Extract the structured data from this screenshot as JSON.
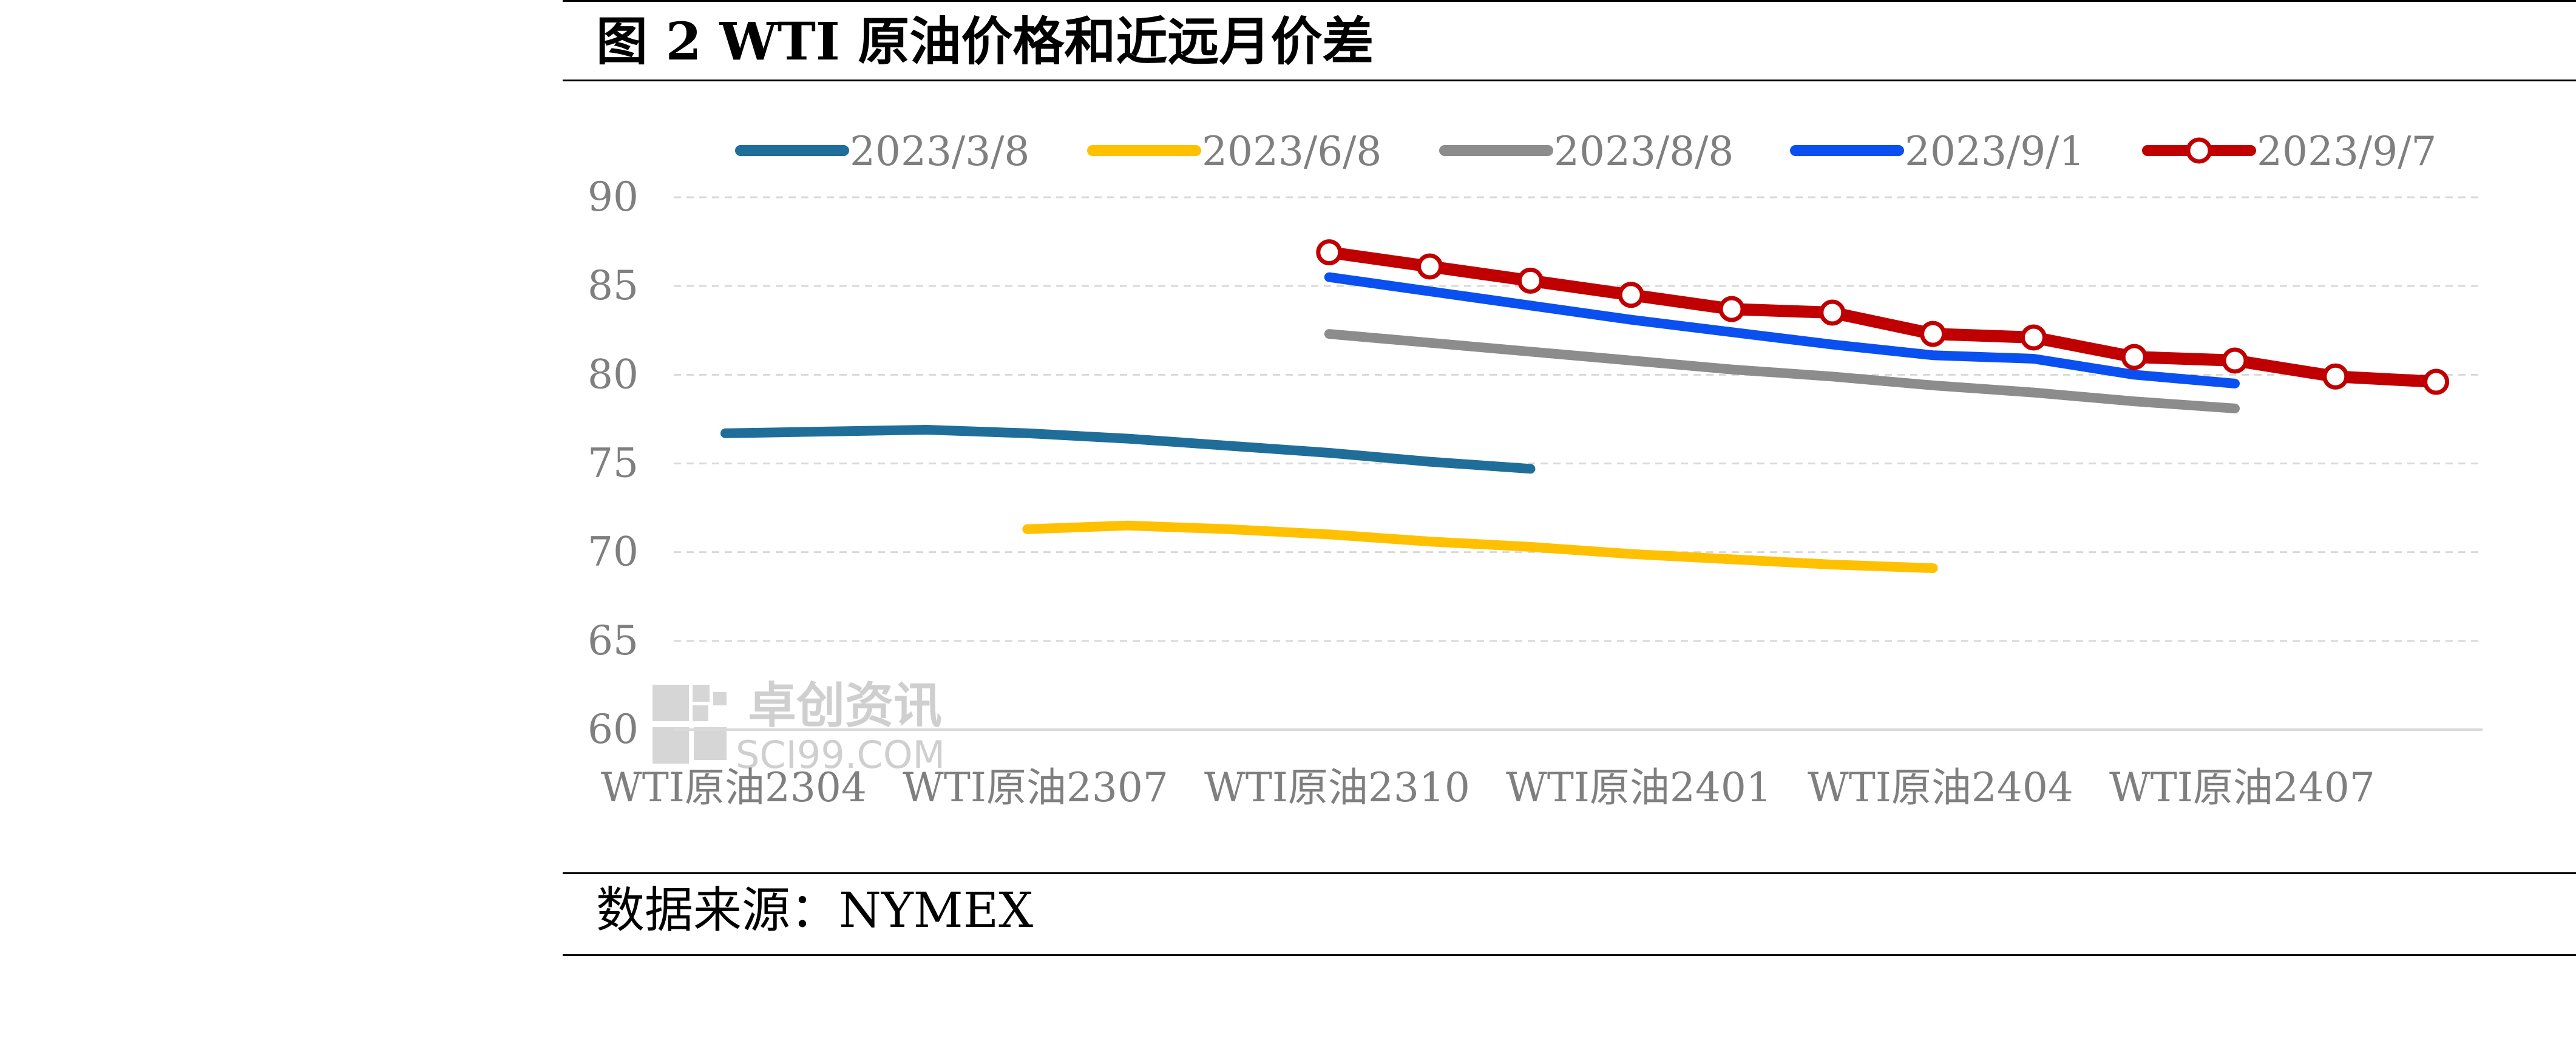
{
  "figure": {
    "title": "图 2 WTI 原油价格和近远月价差",
    "source": "数据来源：NYMEX"
  },
  "watermark": {
    "name": "卓创资讯",
    "site": "SCI99.COM"
  },
  "chart_data": {
    "type": "line",
    "title": "",
    "xlabel": "",
    "ylabel": "",
    "ylim": [
      60,
      90
    ],
    "yticks": [
      60,
      65,
      70,
      75,
      80,
      85,
      90
    ],
    "grid": true,
    "grid_style": "dashed horizontal",
    "legend_position": "top",
    "x_tick_labels": [
      "WTI原油2304",
      "WTI原油2307",
      "WTI原油2310",
      "WTI原油2401",
      "WTI原油2404",
      "WTI原油2407"
    ],
    "series": [
      {
        "name": "2023/3/8",
        "color": "#1f6e99",
        "markers": false,
        "x": [
          "WTI原油2304",
          "WTI原油2305",
          "WTI原油2306",
          "WTI原油2307",
          "WTI原油2308",
          "WTI原油2309",
          "WTI原油2310",
          "WTI原油2311",
          "WTI原油2312"
        ],
        "values": [
          76.7,
          76.8,
          76.9,
          76.7,
          76.4,
          76.0,
          75.6,
          75.1,
          74.7
        ]
      },
      {
        "name": "2023/6/8",
        "color": "#ffc000",
        "markers": false,
        "x": [
          "WTI原油2307",
          "WTI原油2308",
          "WTI原油2309",
          "WTI原油2310",
          "WTI原油2311",
          "WTI原油2312",
          "WTI原油2401",
          "WTI原油2402",
          "WTI原油2403",
          "WTI原油2404"
        ],
        "values": [
          71.3,
          71.5,
          71.3,
          71.0,
          70.6,
          70.3,
          69.9,
          69.6,
          69.3,
          69.1
        ]
      },
      {
        "name": "2023/8/8",
        "color": "#8c8c8c",
        "markers": false,
        "x": [
          "WTI原油2310",
          "WTI原油2311",
          "WTI原油2312",
          "WTI原油2401",
          "WTI原油2402",
          "WTI原油2403",
          "WTI原油2404",
          "WTI原油2405",
          "WTI原油2406",
          "WTI原油2407"
        ],
        "values": [
          82.3,
          81.8,
          81.3,
          80.8,
          80.3,
          79.9,
          79.4,
          79.0,
          78.5,
          78.1
        ]
      },
      {
        "name": "2023/9/1",
        "color": "#0a50f0",
        "markers": false,
        "x": [
          "WTI原油2310",
          "WTI原油2311",
          "WTI原油2312",
          "WTI原油2401",
          "WTI原油2402",
          "WTI原油2403",
          "WTI原油2404",
          "WTI原油2405",
          "WTI原油2406",
          "WTI原油2407"
        ],
        "values": [
          85.5,
          84.7,
          83.9,
          83.1,
          82.4,
          81.7,
          81.1,
          80.9,
          80.0,
          79.5
        ]
      },
      {
        "name": "2023/9/7",
        "color": "#c00000",
        "markers": true,
        "x": [
          "WTI原油2310",
          "WTI原油2311",
          "WTI原油2312",
          "WTI原油2401",
          "WTI原油2402",
          "WTI原油2403",
          "WTI原油2404",
          "WTI原油2405",
          "WTI原油2406",
          "WTI原油2407",
          "WTI原油2408",
          "WTI原油2409"
        ],
        "values": [
          86.9,
          86.1,
          85.3,
          84.5,
          83.7,
          83.5,
          82.3,
          82.1,
          81.0,
          80.8,
          79.9,
          79.6
        ]
      }
    ]
  }
}
